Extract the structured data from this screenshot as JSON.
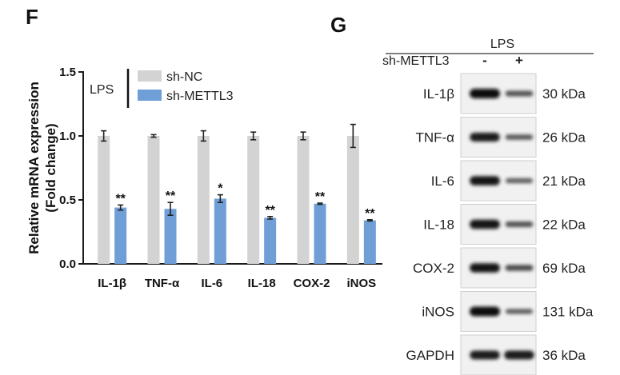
{
  "panels": {
    "left_letter": "F",
    "right_letter": "G"
  },
  "colors": {
    "sh_nc": "#d3d3d3",
    "sh_mettl3": "#6f9fd6",
    "axis": "#1a1a1a"
  },
  "chart_data": [
    {
      "type": "bar",
      "categories": [
        "IL-1β",
        "TNF-α",
        "IL-6",
        "IL-18",
        "COX-2",
        "iNOS"
      ],
      "series": [
        {
          "name": "sh-NC",
          "values": [
            1.0,
            1.0,
            1.0,
            1.0,
            1.0,
            1.0
          ],
          "errors": [
            0.04,
            0.01,
            0.04,
            0.03,
            0.03,
            0.09
          ]
        },
        {
          "name": "sh-METTL3",
          "values": [
            0.44,
            0.43,
            0.51,
            0.36,
            0.47,
            0.34
          ],
          "errors": [
            0.02,
            0.05,
            0.03,
            0.01,
            0.005,
            0.005
          ]
        }
      ],
      "significance": [
        "**",
        "**",
        "*",
        "**",
        "**",
        "**"
      ],
      "ylabel": "Relative mRNA expression",
      "ylabel2": "(Fold change)",
      "ylim": [
        0,
        1.5
      ],
      "yticks": [
        "0.0",
        "0.5",
        "1.0",
        "1.5"
      ],
      "legend_group_label": "LPS",
      "legend_position": "top",
      "grid": false
    },
    {
      "type": "table",
      "header": "LPS",
      "condition_label": "sh-METTL3",
      "lanes": [
        "-",
        "+"
      ],
      "rows": [
        {
          "protein": "IL-1β",
          "size": "30 kDa",
          "intensity": [
            1.0,
            0.45
          ]
        },
        {
          "protein": "TNF-α",
          "size": "26 kDa",
          "intensity": [
            0.9,
            0.4
          ]
        },
        {
          "protein": "IL-6",
          "size": "21 kDa",
          "intensity": [
            0.95,
            0.35
          ]
        },
        {
          "protein": "IL-18",
          "size": "22 kDa",
          "intensity": [
            0.95,
            0.45
          ]
        },
        {
          "protein": "COX-2",
          "size": "69 kDa",
          "intensity": [
            0.95,
            0.5
          ]
        },
        {
          "protein": "iNOS",
          "size": "131 kDa",
          "intensity": [
            1.0,
            0.35
          ]
        },
        {
          "protein": "GAPDH",
          "size": "36 kDa",
          "intensity": [
            0.9,
            0.9
          ]
        }
      ]
    }
  ]
}
